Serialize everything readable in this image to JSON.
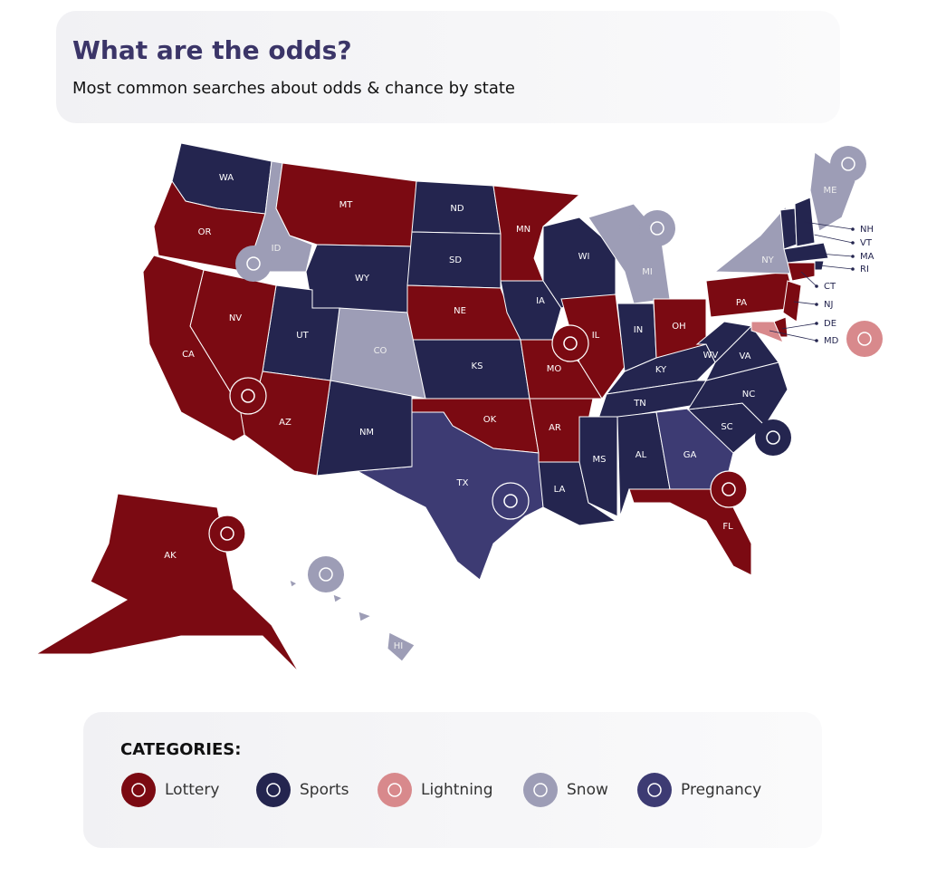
{
  "header": {
    "title": "What are the odds?",
    "subtitle": "Most common searches about odds & chance by state"
  },
  "legend": {
    "title": "CATEGORIES:",
    "categories": [
      {
        "name": "Lottery",
        "color": "#7b0a12"
      },
      {
        "name": "Sports",
        "color": "#24254f"
      },
      {
        "name": "Lightning",
        "color": "#d8898c"
      },
      {
        "name": "Snow",
        "color": "#9d9db6"
      },
      {
        "name": "Pregnancy",
        "color": "#3d3b73"
      }
    ]
  },
  "states": [
    {
      "label": "WA",
      "category": 1
    },
    {
      "label": "OR",
      "category": 0
    },
    {
      "label": "ID",
      "category": 3
    },
    {
      "label": "MT",
      "category": 0
    },
    {
      "label": "WY",
      "category": 1
    },
    {
      "label": "ND",
      "category": 1
    },
    {
      "label": "SD",
      "category": 1
    },
    {
      "label": "NE",
      "category": 0
    },
    {
      "label": "KS",
      "category": 1
    },
    {
      "label": "OK",
      "category": 0
    },
    {
      "label": "TX",
      "category": 4
    },
    {
      "label": "NM",
      "category": 1
    },
    {
      "label": "CO",
      "category": 3
    },
    {
      "label": "UT",
      "category": 1
    },
    {
      "label": "AZ",
      "category": 0
    },
    {
      "label": "NV",
      "category": 0
    },
    {
      "label": "CA",
      "category": 0
    },
    {
      "label": "MN",
      "category": 0
    },
    {
      "label": "IA",
      "category": 1
    },
    {
      "label": "MO",
      "category": 0
    },
    {
      "label": "AR",
      "category": 0
    },
    {
      "label": "LA",
      "category": 1
    },
    {
      "label": "WI",
      "category": 1
    },
    {
      "label": "IL",
      "category": 0
    },
    {
      "label": "MI",
      "category": 3
    },
    {
      "label": "IN",
      "category": 1
    },
    {
      "label": "OH",
      "category": 0
    },
    {
      "label": "KY",
      "category": 1
    },
    {
      "label": "TN",
      "category": 1
    },
    {
      "label": "MS",
      "category": 1
    },
    {
      "label": "AL",
      "category": 1
    },
    {
      "label": "GA",
      "category": 4
    },
    {
      "label": "FL",
      "category": 0
    },
    {
      "label": "SC",
      "category": 1
    },
    {
      "label": "NC",
      "category": 1
    },
    {
      "label": "VA",
      "category": 1
    },
    {
      "label": "WV",
      "category": 1
    },
    {
      "label": "PA",
      "category": 0
    },
    {
      "label": "NY",
      "category": 3
    },
    {
      "label": "ME",
      "category": 3
    },
    {
      "label": "VT",
      "category": 1
    },
    {
      "label": "NH",
      "category": 1
    },
    {
      "label": "MA",
      "category": 1
    },
    {
      "label": "RI",
      "category": 1
    },
    {
      "label": "CT",
      "category": 0
    },
    {
      "label": "NJ",
      "category": 0
    },
    {
      "label": "DE",
      "category": 0
    },
    {
      "label": "MD",
      "category": 2
    },
    {
      "label": "AK",
      "category": 0
    },
    {
      "label": "HI",
      "category": 3
    }
  ]
}
